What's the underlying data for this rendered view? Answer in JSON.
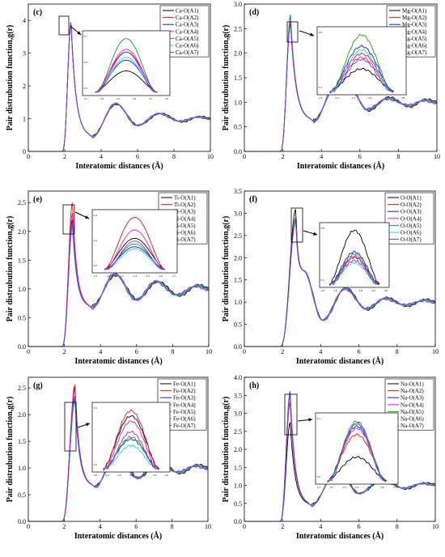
{
  "chart_data": [
    {
      "type": "line",
      "panel_label": "(c)",
      "xlabel": "Interatomic distances (Å)",
      "ylabel": "Pair distrubution function,g(r)",
      "xlim": [
        0,
        10
      ],
      "ylim": [
        0,
        4.5
      ],
      "xticks": [
        "0",
        "2",
        "4",
        "6",
        "8",
        "10"
      ],
      "yticks": [
        "0",
        "1",
        "2",
        "3",
        "4"
      ],
      "legend_position": "top-right",
      "peak_x": 2.35,
      "series_peaks": [
        3.88,
        3.95,
        3.92,
        3.96,
        4.0,
        3.93,
        3.95
      ],
      "secondary": [
        {
          "x": 3.5,
          "y": 0.45
        },
        {
          "x": 4.8,
          "y": 1.45
        },
        {
          "x": 6.0,
          "y": 0.8
        },
        {
          "x": 7.2,
          "y": 1.15
        },
        {
          "x": 8.4,
          "y": 0.92
        },
        {
          "x": 9.4,
          "y": 1.05
        },
        {
          "x": 10,
          "y": 1.0
        }
      ],
      "inset": {
        "xticks": [
          "2.1",
          "2.2",
          "2.3",
          "2.4",
          "2.5",
          "2.6"
        ],
        "yticks": [
          "3.5",
          "3.6",
          "3.7"
        ]
      },
      "series": [
        {
          "name": "Ca-O(A1)",
          "color": "#000000"
        },
        {
          "name": "Ca-O(A2)",
          "color": "#e8170b"
        },
        {
          "name": "Ca-O(A3)",
          "color": "#1a1ae6"
        },
        {
          "name": "Ca-O(A4)",
          "color": "#e619c8"
        },
        {
          "name": "Ca-O(A5)",
          "color": "#1e9e1e"
        },
        {
          "name": "Ca-O(A6)",
          "color": "#1fd6e0"
        },
        {
          "name": "Ca-O(A7)",
          "color": "#8a2be2"
        }
      ]
    },
    {
      "type": "line",
      "panel_label": "(d)",
      "xlabel": "Interatomic distances (Å)",
      "ylabel": "Pair distrubution function,g(r)",
      "xlim": [
        0,
        10
      ],
      "ylim": [
        0,
        3.0
      ],
      "xticks": [
        "0",
        "2",
        "4",
        "6",
        "8",
        "10"
      ],
      "yticks": [
        "0.0",
        "0.5",
        "1.0",
        "1.5",
        "2.0",
        "2.5",
        "3.0"
      ],
      "legend_position": "top-right",
      "peak_x": 2.4,
      "series_peaks": [
        2.6,
        2.68,
        2.72,
        2.66,
        2.78,
        2.7,
        2.65
      ],
      "secondary": [
        {
          "x": 3.6,
          "y": 0.62
        },
        {
          "x": 4.7,
          "y": 1.3
        },
        {
          "x": 5.5,
          "y": 1.28
        },
        {
          "x": 6.4,
          "y": 0.85
        },
        {
          "x": 7.5,
          "y": 1.08
        },
        {
          "x": 8.6,
          "y": 0.93
        },
        {
          "x": 9.4,
          "y": 1.04
        },
        {
          "x": 10,
          "y": 1.0
        }
      ],
      "inset": {
        "xticks": [
          "2.3",
          "2.4",
          "2.5",
          "2.6",
          "2.7",
          "2.8"
        ],
        "yticks": [
          "2.5",
          "2.6"
        ]
      },
      "series": [
        {
          "name": "Mg-O(A1)",
          "color": "#000000"
        },
        {
          "name": "Mg-O(A2)",
          "color": "#e8170b"
        },
        {
          "name": "Mg-O(A3)",
          "color": "#1a1ae6"
        },
        {
          "name": "Mg-O(A4)",
          "color": "#e619c8"
        },
        {
          "name": "Mg-O(A5)",
          "color": "#1e9e1e"
        },
        {
          "name": "Mg-O(A6)",
          "color": "#1fd6e0"
        },
        {
          "name": "Mg-O(A7)",
          "color": "#8a2be2"
        }
      ]
    },
    {
      "type": "line",
      "panel_label": "(e)",
      "xlabel": "Interatomic distances (Å)",
      "ylabel": "Pair distrubution function,g(r)",
      "xlim": [
        0,
        10
      ],
      "ylim": [
        0,
        2.7
      ],
      "xticks": [
        "0",
        "2",
        "4",
        "6",
        "8",
        "10"
      ],
      "yticks": [
        "0.0",
        "0.5",
        "1.0",
        "1.5",
        "2.0",
        "2.5"
      ],
      "legend_position": "top-right",
      "peak_x": 2.45,
      "series_peaks": [
        2.2,
        2.5,
        2.08,
        2.32,
        2.12,
        2.05,
        2.16
      ],
      "secondary": [
        {
          "x": 3.5,
          "y": 0.68
        },
        {
          "x": 4.8,
          "y": 1.25
        },
        {
          "x": 6.0,
          "y": 0.82
        },
        {
          "x": 7.1,
          "y": 1.12
        },
        {
          "x": 8.3,
          "y": 0.9
        },
        {
          "x": 9.4,
          "y": 1.05
        },
        {
          "x": 10,
          "y": 1.0
        }
      ],
      "inset": {
        "xticks": [
          "2.1",
          "2.2",
          "2.3",
          "2.4",
          "2.5",
          "2.6",
          "2.7"
        ],
        "yticks": [
          "2.0",
          "2.2",
          "2.4"
        ]
      },
      "series": [
        {
          "name": "Ti-O(A1)",
          "color": "#000000"
        },
        {
          "name": "Ti-O(A2)",
          "color": "#e8170b"
        },
        {
          "name": "Ti-O(A3)",
          "color": "#1a1ae6"
        },
        {
          "name": "Ti-O(A4)",
          "color": "#e619c8"
        },
        {
          "name": "Ti-O(A5)",
          "color": "#1e9e1e"
        },
        {
          "name": "Ti-O(A6)",
          "color": "#1fd6e0"
        },
        {
          "name": "Ti-O(A7)",
          "color": "#8a2be2"
        }
      ]
    },
    {
      "type": "line",
      "panel_label": "(f)",
      "xlabel": "Interatomic distances (Å)",
      "ylabel": "Pair distrubution function,g(r)",
      "xlim": [
        0,
        10
      ],
      "ylim": [
        0,
        3.5
      ],
      "xticks": [
        "0",
        "2",
        "4",
        "6",
        "8",
        "10"
      ],
      "yticks": [
        "0.0",
        "0.5",
        "1.0",
        "1.5",
        "2.0",
        "2.5",
        "3.0",
        "3.5"
      ],
      "legend_position": "top-right",
      "peak_x": 2.7,
      "series_peaks": [
        3.1,
        2.85,
        2.9,
        2.82,
        2.88,
        2.8,
        2.86
      ],
      "secondary": [
        {
          "x": 3.1,
          "y": 1.7
        },
        {
          "x": 4.1,
          "y": 0.6
        },
        {
          "x": 5.3,
          "y": 1.3
        },
        {
          "x": 6.4,
          "y": 0.85
        },
        {
          "x": 7.4,
          "y": 1.08
        },
        {
          "x": 8.5,
          "y": 0.93
        },
        {
          "x": 9.5,
          "y": 1.04
        },
        {
          "x": 10,
          "y": 1.0
        }
      ],
      "inset": {
        "xticks": [
          "2.5",
          "2.6",
          "2.7",
          "2.8",
          "2.9",
          "3.0"
        ],
        "yticks": [
          "2.5",
          "3.0"
        ]
      },
      "series": [
        {
          "name": "O-O(A1)",
          "color": "#000000"
        },
        {
          "name": "O-O(A2)",
          "color": "#e8170b"
        },
        {
          "name": "O-O(A3)",
          "color": "#1a1ae6"
        },
        {
          "name": "O-O(A4)",
          "color": "#e619c8"
        },
        {
          "name": "O-O(A5)",
          "color": "#1e9e1e"
        },
        {
          "name": "O-O(A6)",
          "color": "#1fd6e0"
        },
        {
          "name": "O-O(A7)",
          "color": "#8a2be2"
        }
      ]
    },
    {
      "type": "line",
      "panel_label": "(g)",
      "xlabel": "Interatomic distances (Å)",
      "ylabel": "Pair distrubution function,g(r)",
      "xlim": [
        0,
        10
      ],
      "ylim": [
        0,
        2.7
      ],
      "xticks": [
        "0",
        "2",
        "4",
        "6",
        "8",
        "10"
      ],
      "yticks": [
        "0.0",
        "0.5",
        "1.0",
        "1.5",
        "2.0",
        "2.5"
      ],
      "legend_position": "top-right",
      "peak_x": 2.6,
      "series_peaks": [
        2.5,
        2.55,
        2.28,
        2.45,
        2.3,
        2.22,
        2.35
      ],
      "secondary": [
        {
          "x": 3.7,
          "y": 0.65
        },
        {
          "x": 4.9,
          "y": 1.25
        },
        {
          "x": 6.1,
          "y": 0.82
        },
        {
          "x": 7.2,
          "y": 1.12
        },
        {
          "x": 8.4,
          "y": 0.92
        },
        {
          "x": 9.4,
          "y": 1.04
        },
        {
          "x": 10,
          "y": 1.0
        }
      ],
      "inset": {
        "xticks": [
          "2.0",
          "2.2",
          "2.4",
          "2.6",
          "2.8",
          "3.0",
          "3.2"
        ],
        "yticks": [
          "2.0",
          "2.5"
        ]
      },
      "series": [
        {
          "name": "Fe-O(A1)",
          "color": "#000000"
        },
        {
          "name": "Fe-O(A2)",
          "color": "#e8170b"
        },
        {
          "name": "Fe-O(A3)",
          "color": "#1a1ae6"
        },
        {
          "name": "Fe-O(A4)",
          "color": "#e619c8"
        },
        {
          "name": "Fe-O(A5)",
          "color": "#1e9e1e"
        },
        {
          "name": "Fe-O(A6)",
          "color": "#1fd6e0"
        },
        {
          "name": "Fe-O(A7)",
          "color": "#8a2be2"
        }
      ]
    },
    {
      "type": "line",
      "panel_label": "(h)",
      "xlabel": "Interatomic distances (Å)",
      "ylabel": "Pair distrubution function,g(r)",
      "xlim": [
        0,
        10
      ],
      "ylim": [
        0,
        4.0
      ],
      "xticks": [
        "0",
        "2",
        "4",
        "6",
        "8",
        "10"
      ],
      "yticks": [
        "0.0",
        "0.5",
        "1.0",
        "1.5",
        "2.0",
        "2.5",
        "3.0",
        "3.5",
        "4.0"
      ],
      "legend_position": "top-right",
      "peak_x": 2.4,
      "series_peaks": [
        2.75,
        3.3,
        3.5,
        3.45,
        3.62,
        3.55,
        3.58
      ],
      "secondary": [
        {
          "x": 3.5,
          "y": 0.45
        },
        {
          "x": 4.9,
          "y": 1.45
        },
        {
          "x": 6.0,
          "y": 0.78
        },
        {
          "x": 7.2,
          "y": 1.15
        },
        {
          "x": 8.4,
          "y": 0.92
        },
        {
          "x": 9.4,
          "y": 1.05
        },
        {
          "x": 10,
          "y": 1.02
        }
      ],
      "inset": {
        "xticks": [
          "2.1",
          "2.2",
          "2.3",
          "2.4",
          "2.5",
          "2.6",
          "2.7"
        ],
        "yticks": [
          "3.0",
          "3.5"
        ]
      },
      "series": [
        {
          "name": "Na-O(A1)",
          "color": "#000000"
        },
        {
          "name": "Na-O(A2)",
          "color": "#e8170b"
        },
        {
          "name": "Na-O(A3)",
          "color": "#1a1ae6"
        },
        {
          "name": "Na-O(A4)",
          "color": "#e619c8"
        },
        {
          "name": "Na-O(A5)",
          "color": "#1e9e1e"
        },
        {
          "name": "Na-O(A6)",
          "color": "#1fd6e0"
        },
        {
          "name": "Na-O(A7)",
          "color": "#8a2be2"
        }
      ]
    }
  ]
}
